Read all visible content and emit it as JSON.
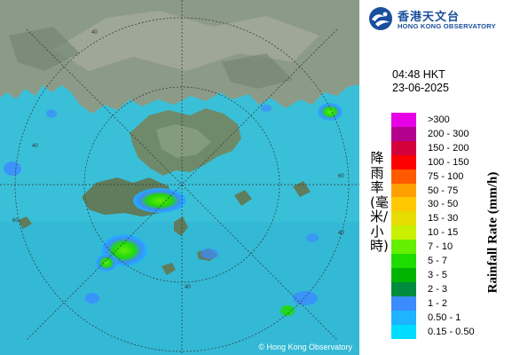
{
  "logo": {
    "name_cn": "香港天文台",
    "name_en": "HONG KONG OBSERVATORY",
    "icon": "hko-emblem-icon"
  },
  "timestamp": {
    "time": "04:48 HKT",
    "date": "23-06-2025"
  },
  "map": {
    "type": "radar-rainfall-map",
    "copyright": "© Hong Kong Observatory",
    "range_ring_labels": [
      "40",
      "60",
      "40",
      "40",
      "60",
      "40"
    ],
    "colors": {
      "sea": "#38c1da",
      "land": "#8a9a88",
      "ring": "#333333"
    }
  },
  "legend": {
    "title_cn": "降雨率(毫米/小時)",
    "title_en": "Rainfall Rate (mm/h)",
    "items": [
      {
        "label": ">300",
        "color": "#e600e6"
      },
      {
        "label": "200 - 300",
        "color": "#b2008c"
      },
      {
        "label": "150 - 200",
        "color": "#d4003a"
      },
      {
        "label": "100 - 150",
        "color": "#ff0000"
      },
      {
        "label": "75 - 100",
        "color": "#ff5a00"
      },
      {
        "label": "50 - 75",
        "color": "#ffa000"
      },
      {
        "label": "30 - 50",
        "color": "#ffc800"
      },
      {
        "label": "15 - 30",
        "color": "#e6dc00"
      },
      {
        "label": "10 - 15",
        "color": "#c8f000"
      },
      {
        "label": "7 - 10",
        "color": "#64f000"
      },
      {
        "label": "5 - 7",
        "color": "#1edc00"
      },
      {
        "label": "3 - 5",
        "color": "#00b400"
      },
      {
        "label": "2 - 3",
        "color": "#008c3c"
      },
      {
        "label": "1 - 2",
        "color": "#3c8cff"
      },
      {
        "label": "0.50 - 1",
        "color": "#1eb4ff"
      },
      {
        "label": "0.15 - 0.50",
        "color": "#00dcff"
      }
    ]
  }
}
